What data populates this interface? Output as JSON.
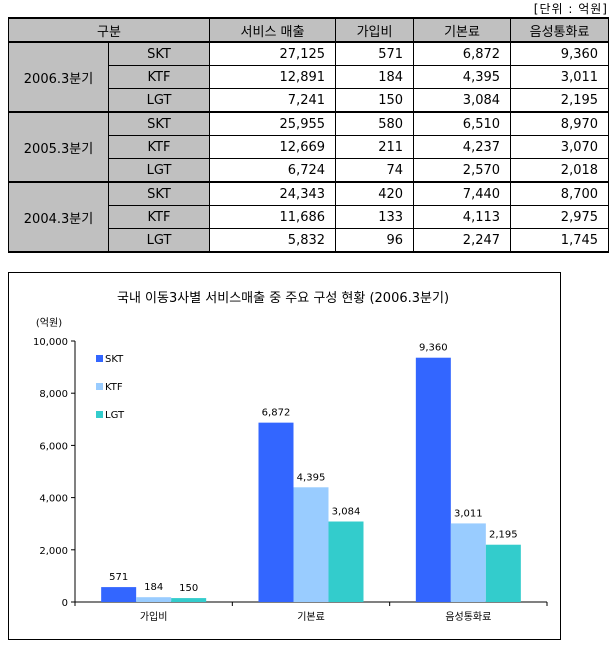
{
  "unit_label": "[단위 : 억원]",
  "table": {
    "headers": [
      "구분",
      "서비스 매출",
      "가입비",
      "기본료",
      "음성통화료"
    ],
    "groups": [
      {
        "period": "2006.3분기",
        "rows": [
          {
            "carrier": "SKT",
            "values": [
              "27,125",
              "571",
              "6,872",
              "9,360"
            ]
          },
          {
            "carrier": "KTF",
            "values": [
              "12,891",
              "184",
              "4,395",
              "3,011"
            ]
          },
          {
            "carrier": "LGT",
            "values": [
              "7,241",
              "150",
              "3,084",
              "2,195"
            ]
          }
        ]
      },
      {
        "period": "2005.3분기",
        "rows": [
          {
            "carrier": "SKT",
            "values": [
              "25,955",
              "580",
              "6,510",
              "8,970"
            ]
          },
          {
            "carrier": "KTF",
            "values": [
              "12,669",
              "211",
              "4,237",
              "3,070"
            ]
          },
          {
            "carrier": "LGT",
            "values": [
              "6,724",
              "74",
              "2,570",
              "2,018"
            ]
          }
        ]
      },
      {
        "period": "2004.3분기",
        "rows": [
          {
            "carrier": "SKT",
            "values": [
              "24,343",
              "420",
              "7,440",
              "8,700"
            ]
          },
          {
            "carrier": "KTF",
            "values": [
              "11,686",
              "133",
              "4,113",
              "2,975"
            ]
          },
          {
            "carrier": "LGT",
            "values": [
              "5,832",
              "96",
              "2,247",
              "1,745"
            ]
          }
        ]
      }
    ]
  },
  "chart_data": {
    "type": "bar",
    "title": "국내 이동3사별 서비스매출 중 주요 구성 현황 (2006.3분기)",
    "ylabel": "(억원)",
    "xlabel": "",
    "categories": [
      "가입비",
      "기본료",
      "음성통화료"
    ],
    "series": [
      {
        "name": "SKT",
        "values": [
          571,
          6872,
          9360
        ],
        "color": "#3366ff"
      },
      {
        "name": "KTF",
        "values": [
          184,
          4395,
          3011
        ],
        "color": "#99ccff"
      },
      {
        "name": "LGT",
        "values": [
          150,
          3084,
          2195
        ],
        "color": "#33cccc"
      }
    ],
    "data_labels": [
      [
        "571",
        "6,872",
        "9,360"
      ],
      [
        "184",
        "4,395",
        "3,011"
      ],
      [
        "150",
        "3,084",
        "2,195"
      ]
    ],
    "ylim": [
      0,
      10000
    ],
    "yticks": [
      0,
      2000,
      4000,
      6000,
      8000,
      10000
    ],
    "ytick_labels": [
      "0",
      "2,000",
      "4,000",
      "6,000",
      "8,000",
      "10,000"
    ],
    "grid": false,
    "legend_position": "top-left"
  }
}
